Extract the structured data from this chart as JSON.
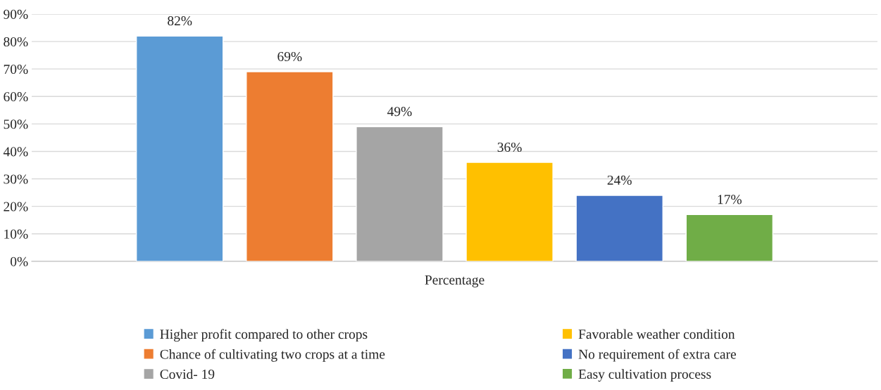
{
  "chart_data": {
    "type": "bar",
    "categories": [
      "Percentage"
    ],
    "series": [
      {
        "name": "Higher profit compared to other crops",
        "color": "#5b9bd5",
        "values": [
          82
        ],
        "value_labels": [
          "82%"
        ]
      },
      {
        "name": "Chance of cultivating two crops at a time",
        "color": "#ed7d31",
        "values": [
          69
        ],
        "value_labels": [
          "69%"
        ]
      },
      {
        "name": "Covid- 19",
        "color": "#a5a5a5",
        "values": [
          49
        ],
        "value_labels": [
          "49%"
        ]
      },
      {
        "name": "Favorable weather condition",
        "color": "#ffc000",
        "values": [
          36
        ],
        "value_labels": [
          "36%"
        ]
      },
      {
        "name": "No requirement of extra care",
        "color": "#4472c4",
        "values": [
          24
        ],
        "value_labels": [
          "24%"
        ]
      },
      {
        "name": "Easy cultivation process",
        "color": "#70ad47",
        "values": [
          17
        ],
        "value_labels": [
          "17%"
        ]
      }
    ],
    "ylim": [
      0,
      90
    ],
    "yticks": [
      {
        "value": 0,
        "label": "0%"
      },
      {
        "value": 10,
        "label": "10%"
      },
      {
        "value": 20,
        "label": "20%"
      },
      {
        "value": 30,
        "label": "30%"
      },
      {
        "value": 40,
        "label": "40%"
      },
      {
        "value": 50,
        "label": "50%"
      },
      {
        "value": 60,
        "label": "60%"
      },
      {
        "value": 70,
        "label": "70%"
      },
      {
        "value": 80,
        "label": "80%"
      },
      {
        "value": 90,
        "label": "90%"
      }
    ],
    "grid": "y",
    "legend": "bottom"
  }
}
